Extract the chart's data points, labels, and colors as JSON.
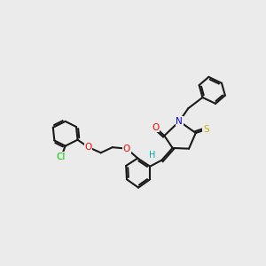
{
  "bg_color": "#ebebeb",
  "bond_color": "#1a1a1a",
  "bond_width": 1.5,
  "atom_colors": {
    "O": "#ff0000",
    "N": "#0000ff",
    "S": "#c8b400",
    "Cl": "#00cc00",
    "H": "#00aaaa",
    "C": "#1a1a1a"
  },
  "font_size": 7.5
}
